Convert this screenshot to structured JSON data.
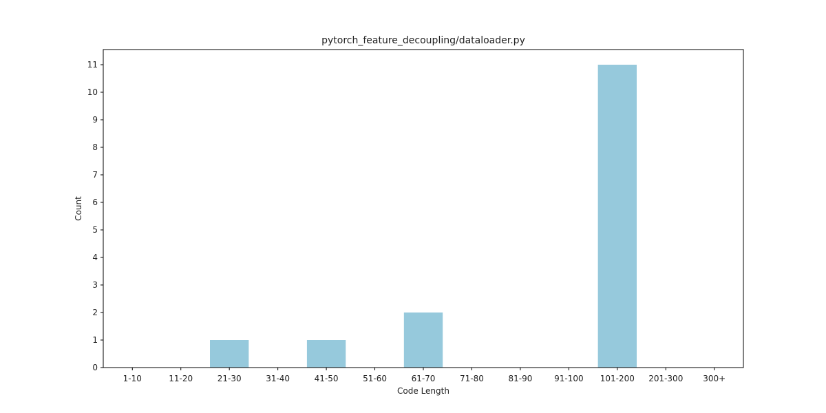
{
  "chart_data": {
    "type": "bar",
    "title": "pytorch_feature_decoupling/dataloader.py",
    "xlabel": "Code Length",
    "ylabel": "Count",
    "categories": [
      "1-10",
      "11-20",
      "21-30",
      "31-40",
      "41-50",
      "51-60",
      "61-70",
      "71-80",
      "81-90",
      "91-100",
      "101-200",
      "201-300",
      "300+"
    ],
    "values": [
      0,
      0,
      1,
      0,
      1,
      0,
      2,
      0,
      0,
      0,
      11,
      0,
      0
    ],
    "ylim": [
      0,
      11.55
    ],
    "yticks": [
      0,
      1,
      2,
      3,
      4,
      5,
      6,
      7,
      8,
      9,
      10,
      11
    ],
    "bar_color": "#96c9dc",
    "grid": false,
    "legend": "none"
  }
}
